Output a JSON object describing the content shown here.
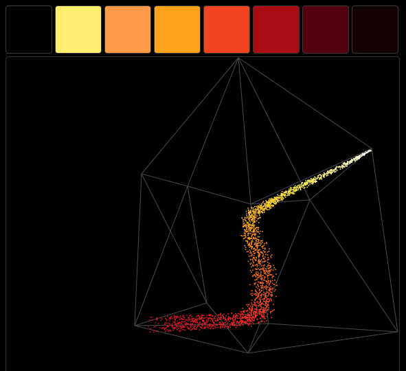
{
  "palette": {
    "swatches": [
      {
        "name": "swatch-black",
        "color": "#000000"
      },
      {
        "name": "swatch-light-yellow",
        "color": "#FFEE70"
      },
      {
        "name": "swatch-light-orange",
        "color": "#FF9A48"
      },
      {
        "name": "swatch-orange",
        "color": "#FFA41A"
      },
      {
        "name": "swatch-red-orange",
        "color": "#F04420"
      },
      {
        "name": "swatch-crimson",
        "color": "#AA0A12"
      },
      {
        "name": "swatch-dark-maroon",
        "color": "#520010"
      },
      {
        "name": "swatch-near-black",
        "color": "#120002"
      }
    ]
  },
  "scene": {
    "wireframe_color": "#4a4a4a",
    "point_gradient": [
      "#FFFFFF",
      "#FFF04A",
      "#FFB020",
      "#FF6A20",
      "#F2262A",
      "#C8102A"
    ]
  }
}
